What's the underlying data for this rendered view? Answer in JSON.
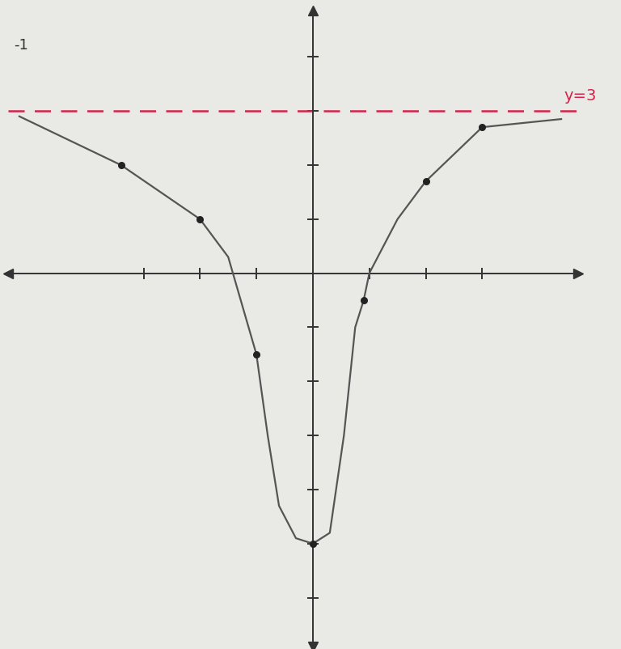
{
  "chart_data": {
    "type": "line",
    "series": [
      {
        "type": "line",
        "color": "#555555",
        "line_style": "solid",
        "x": [
          -5.2,
          -3.4,
          -2,
          -1.5,
          -1,
          -0.8,
          -0.6,
          -0.3,
          0,
          0.3,
          0.55,
          0.75,
          0.9,
          1.0,
          1.5,
          2,
          3,
          4.4
        ],
        "values": [
          2.9,
          2.0,
          1.0,
          0.3,
          -1.5,
          -3,
          -4.3,
          -4.9,
          -5,
          -4.8,
          -3,
          -1,
          -0.5,
          0,
          1,
          1.7,
          2.7,
          2.85
        ]
      },
      {
        "type": "scatter",
        "color": "#222222",
        "marker": "o",
        "x": [
          -3.4,
          -2,
          -1,
          0,
          0.9,
          2,
          3
        ],
        "values": [
          2.0,
          1.0,
          -1.5,
          -5,
          -0.5,
          1.7,
          2.7
        ]
      }
    ],
    "asymptote": {
      "y": 3,
      "color": "#d6224a",
      "line_style": "dashed",
      "label": "y=3",
      "label_x": 4.45,
      "label_y": 3.15
    },
    "annotations": [
      {
        "text": "-1",
        "x": -5.3,
        "y": 4.1
      }
    ],
    "xlim": [
      -5.4,
      4.7
    ],
    "ylim": [
      -6.9,
      4.85
    ],
    "xticks": [
      -3,
      -2,
      -1,
      1,
      2,
      3
    ],
    "yticks": [
      -6,
      -5,
      -4,
      -3,
      -2,
      -1,
      1,
      2,
      3,
      4
    ],
    "tick_labels": false
  }
}
